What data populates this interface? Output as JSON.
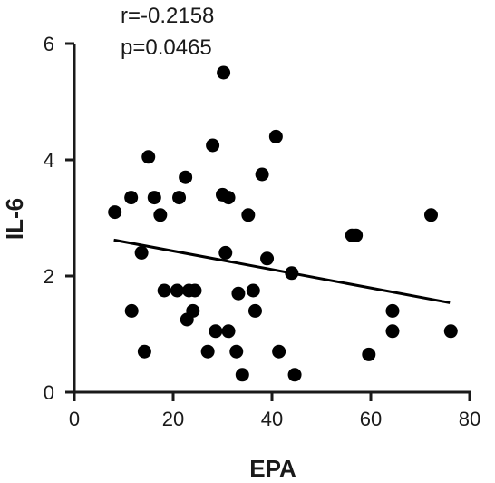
{
  "chart_data": {
    "type": "scatter",
    "xlabel": "EPA",
    "ylabel": "IL-6",
    "xlim": [
      0,
      80
    ],
    "ylim": [
      0,
      6
    ],
    "x_ticks": [
      0,
      20,
      40,
      60,
      80
    ],
    "y_ticks": [
      0,
      2,
      4,
      6
    ],
    "annotations": [
      "r=-0.2158",
      "p=0.0465"
    ],
    "grid": false,
    "colors": {
      "points": "#000000",
      "line": "#000000",
      "axis": "#1a1a1a"
    },
    "points": [
      {
        "x": 8.2,
        "y": 3.1
      },
      {
        "x": 11.5,
        "y": 3.35
      },
      {
        "x": 11.6,
        "y": 1.4
      },
      {
        "x": 13.6,
        "y": 2.4
      },
      {
        "x": 14.2,
        "y": 0.7
      },
      {
        "x": 15.0,
        "y": 4.05
      },
      {
        "x": 16.2,
        "y": 3.35
      },
      {
        "x": 17.4,
        "y": 3.05
      },
      {
        "x": 18.2,
        "y": 1.75
      },
      {
        "x": 20.8,
        "y": 1.75
      },
      {
        "x": 21.2,
        "y": 3.35
      },
      {
        "x": 22.5,
        "y": 3.7
      },
      {
        "x": 22.8,
        "y": 1.25
      },
      {
        "x": 23.2,
        "y": 1.75
      },
      {
        "x": 24.0,
        "y": 1.4
      },
      {
        "x": 24.4,
        "y": 1.75
      },
      {
        "x": 27.0,
        "y": 0.7
      },
      {
        "x": 28.0,
        "y": 4.25
      },
      {
        "x": 28.6,
        "y": 1.05
      },
      {
        "x": 30.0,
        "y": 3.4
      },
      {
        "x": 30.2,
        "y": 5.5
      },
      {
        "x": 30.6,
        "y": 2.4
      },
      {
        "x": 31.2,
        "y": 3.35
      },
      {
        "x": 31.2,
        "y": 1.05
      },
      {
        "x": 32.8,
        "y": 0.7
      },
      {
        "x": 33.2,
        "y": 1.7
      },
      {
        "x": 34.0,
        "y": 0.3
      },
      {
        "x": 35.2,
        "y": 3.05
      },
      {
        "x": 36.2,
        "y": 1.75
      },
      {
        "x": 36.6,
        "y": 1.4
      },
      {
        "x": 38.0,
        "y": 3.75
      },
      {
        "x": 39.0,
        "y": 2.3
      },
      {
        "x": 40.8,
        "y": 4.4
      },
      {
        "x": 41.4,
        "y": 0.7
      },
      {
        "x": 44.0,
        "y": 2.05
      },
      {
        "x": 44.6,
        "y": 0.3
      },
      {
        "x": 56.2,
        "y": 2.7
      },
      {
        "x": 57.0,
        "y": 2.7
      },
      {
        "x": 59.6,
        "y": 0.65
      },
      {
        "x": 64.4,
        "y": 1.4
      },
      {
        "x": 64.4,
        "y": 1.05
      },
      {
        "x": 72.2,
        "y": 3.05
      },
      {
        "x": 76.2,
        "y": 1.05
      }
    ],
    "fit_line": {
      "x": [
        8,
        76
      ],
      "y": [
        2.62,
        1.54
      ]
    }
  }
}
